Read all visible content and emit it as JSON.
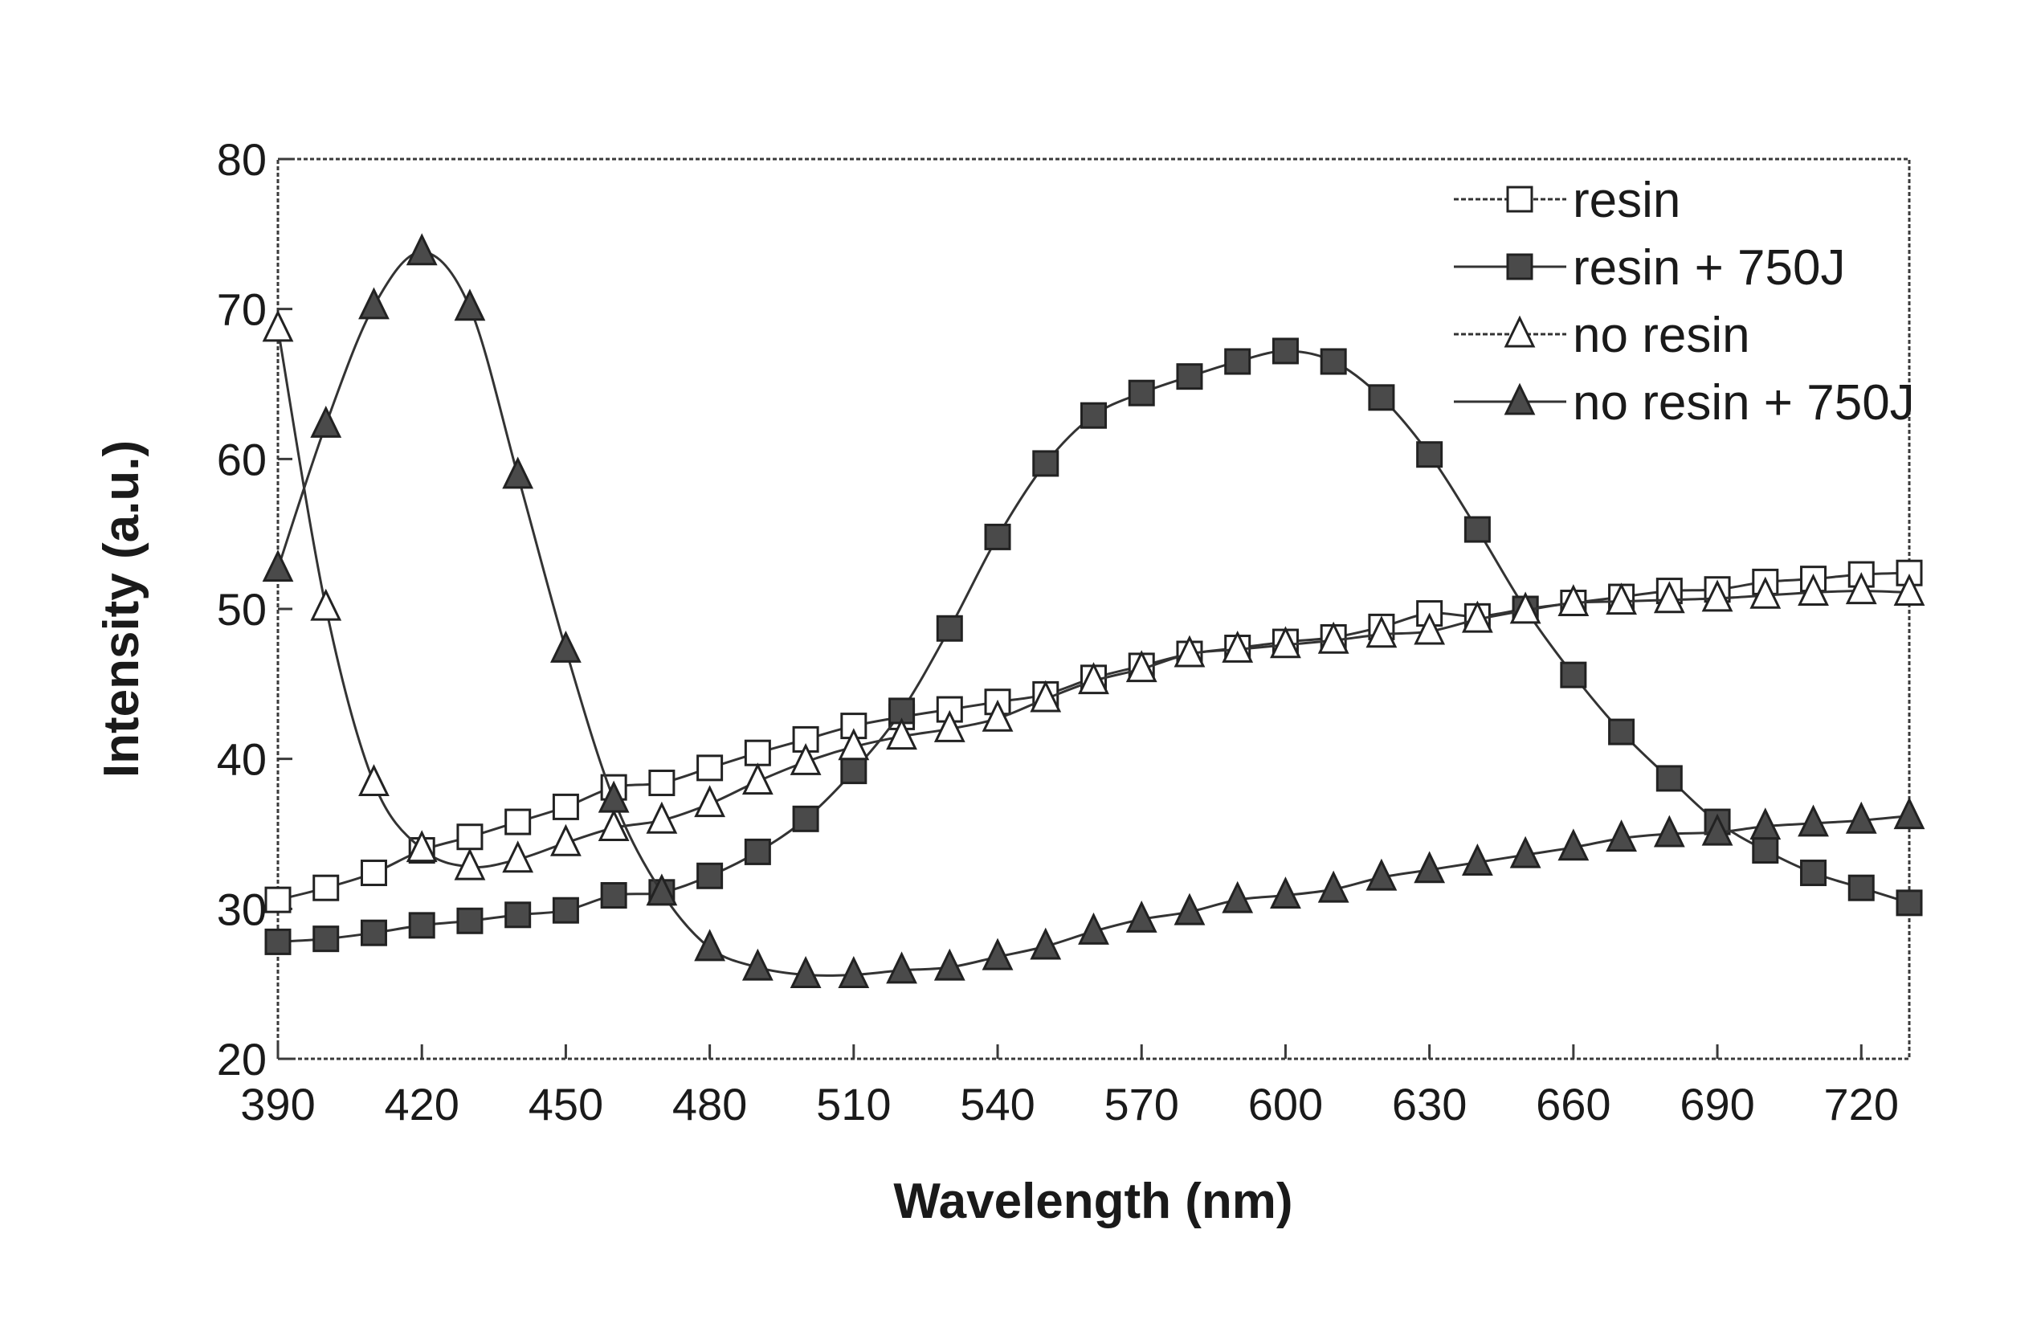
{
  "chart_data": {
    "type": "line",
    "title": "",
    "xlabel": "Wavelength (nm)",
    "ylabel": "Intensity (a.u.)",
    "xlim": [
      390,
      730
    ],
    "ylim": [
      20,
      80
    ],
    "xticks": [
      390,
      420,
      450,
      480,
      510,
      540,
      570,
      600,
      630,
      660,
      690,
      720
    ],
    "yticks": [
      20,
      30,
      40,
      50,
      60,
      70,
      80
    ],
    "grid": false,
    "legend_position": "top-right",
    "x": [
      390,
      400,
      410,
      420,
      430,
      440,
      450,
      460,
      470,
      480,
      490,
      500,
      510,
      520,
      530,
      540,
      550,
      560,
      570,
      580,
      590,
      600,
      610,
      620,
      630,
      640,
      650,
      660,
      670,
      680,
      690,
      700,
      710,
      720,
      730
    ],
    "series": [
      {
        "name": "resin",
        "marker": "open-square",
        "values": [
          30.6,
          31.4,
          32.4,
          33.9,
          34.8,
          35.8,
          36.8,
          38.1,
          38.4,
          39.4,
          40.4,
          41.3,
          42.2,
          42.8,
          43.3,
          43.8,
          44.3,
          45.4,
          46.2,
          47.0,
          47.4,
          47.8,
          48.1,
          48.8,
          49.7,
          49.5,
          50.0,
          50.4,
          50.8,
          51.2,
          51.3,
          51.8,
          52.0,
          52.3,
          52.4
        ]
      },
      {
        "name": "resin + 750J",
        "marker": "filled-square",
        "values": [
          27.8,
          28.0,
          28.4,
          28.9,
          29.2,
          29.6,
          29.9,
          30.9,
          31.1,
          32.2,
          33.8,
          36.0,
          39.2,
          43.2,
          48.7,
          54.8,
          59.7,
          62.9,
          64.4,
          65.5,
          66.5,
          67.2,
          66.5,
          64.1,
          60.3,
          55.3,
          50.0,
          45.6,
          41.8,
          38.7,
          35.8,
          33.9,
          32.4,
          31.4,
          30.4
        ]
      },
      {
        "name": "no resin",
        "marker": "open-triangle",
        "values": [
          68.7,
          50.1,
          38.4,
          34.0,
          32.8,
          33.3,
          34.4,
          35.4,
          35.9,
          37.0,
          38.5,
          39.8,
          40.8,
          41.5,
          42.0,
          42.7,
          44.0,
          45.2,
          46.0,
          47.0,
          47.3,
          47.6,
          47.9,
          48.3,
          48.5,
          49.3,
          49.9,
          50.4,
          50.5,
          50.6,
          50.7,
          50.9,
          51.1,
          51.2,
          51.1
        ]
      },
      {
        "name": "no resin + 750J",
        "marker": "filled-triangle",
        "values": [
          52.7,
          62.3,
          70.2,
          73.8,
          70.1,
          58.9,
          47.3,
          37.3,
          31.1,
          27.4,
          26.1,
          25.6,
          25.6,
          25.9,
          26.1,
          26.8,
          27.5,
          28.5,
          29.3,
          29.8,
          30.6,
          30.9,
          31.3,
          32.1,
          32.6,
          33.1,
          33.6,
          34.1,
          34.7,
          35.0,
          35.1,
          35.5,
          35.7,
          35.9,
          36.2
        ]
      }
    ]
  }
}
